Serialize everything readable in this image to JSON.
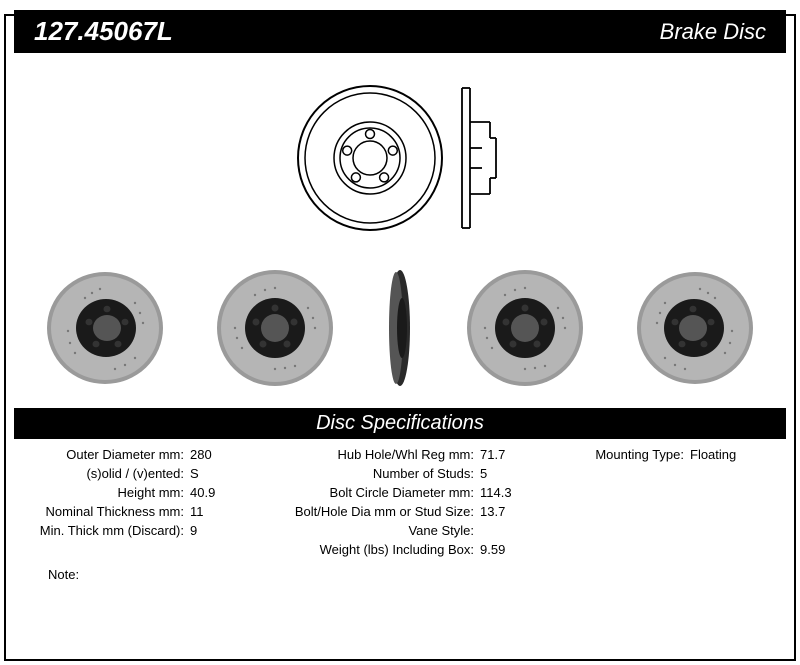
{
  "header": {
    "part_number": "127.45067L",
    "product_type": "Brake Disc"
  },
  "spec_title": "Disc Specifications",
  "specs": {
    "col1": [
      {
        "label": "Outer Diameter mm:",
        "value": "280"
      },
      {
        "label": "(s)olid / (v)ented:",
        "value": "S"
      },
      {
        "label": "Height mm:",
        "value": "40.9"
      },
      {
        "label": "Nominal Thickness mm:",
        "value": "11"
      },
      {
        "label": "Min. Thick mm (Discard):",
        "value": "9"
      }
    ],
    "col2": [
      {
        "label": "Hub Hole/Whl Reg mm:",
        "value": "71.7"
      },
      {
        "label": "Number of Studs:",
        "value": "5"
      },
      {
        "label": "Bolt Circle Diameter mm:",
        "value": "114.3"
      },
      {
        "label": "Bolt/Hole Dia mm or Stud Size:",
        "value": "13.7"
      },
      {
        "label": "Vane Style:",
        "value": ""
      },
      {
        "label": "Weight (lbs) Including Box:",
        "value": "9.59"
      }
    ],
    "col3": [
      {
        "label": "Mounting Type:",
        "value": "Floating"
      }
    ]
  },
  "note_label": "Note:",
  "note_value": "",
  "diagram": {
    "stroke": "#000000",
    "fill": "#ffffff",
    "stud_count": 5
  },
  "photo": {
    "rim_color": "#9a9a9a",
    "hub_color": "#1a1a1a",
    "stud_color": "#555555"
  }
}
